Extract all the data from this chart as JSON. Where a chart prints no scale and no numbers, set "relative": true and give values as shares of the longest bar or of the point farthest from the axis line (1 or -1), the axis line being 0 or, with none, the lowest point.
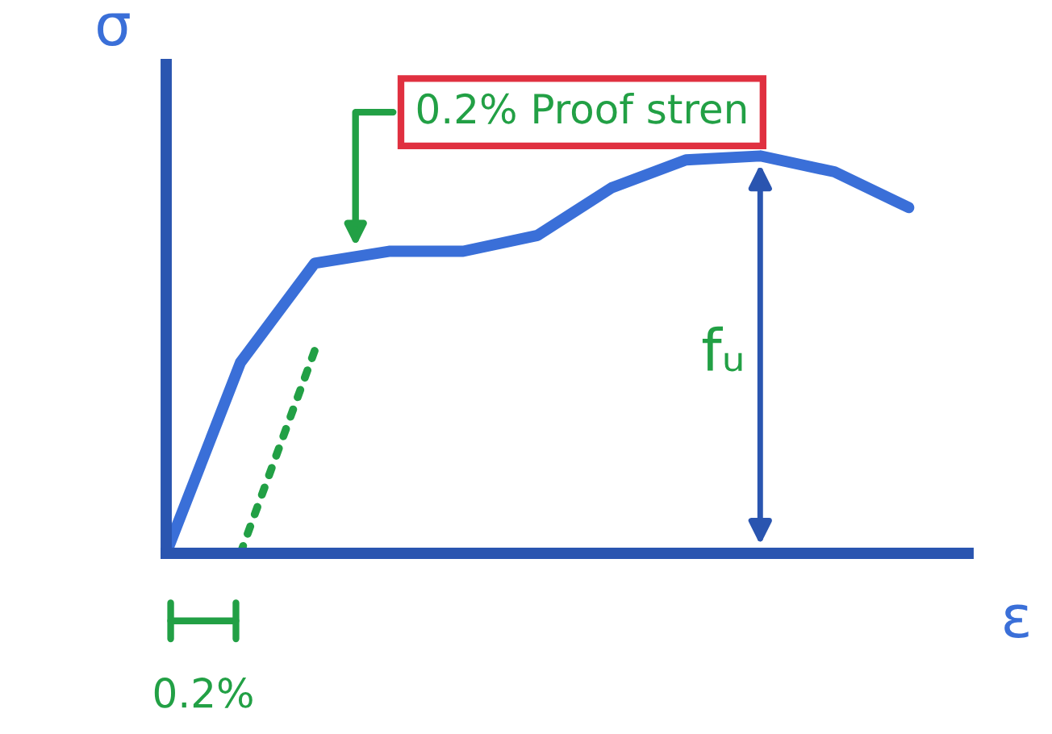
{
  "chart_data": {
    "type": "line",
    "relative": true,
    "xlabel": "ε",
    "ylabel": "σ",
    "categories": [
      null,
      null,
      null,
      null,
      null,
      null,
      null,
      null,
      null,
      null,
      null
    ],
    "series": [
      {
        "color": "#3a6fd8",
        "values": [
          0,
          0.48,
          0.73,
          0.76,
          0.76,
          0.8,
          0.92,
          0.99,
          1.0,
          0.96,
          0.87
        ]
      },
      {
        "color": "#22a045",
        "line_style": "dotted",
        "values": [
          null,
          0,
          0.51,
          null,
          null,
          null,
          null,
          null,
          null,
          null,
          null
        ]
      }
    ],
    "annotations": [
      "0.2% Proof stren",
      "fᵤ",
      "0.2%"
    ],
    "marker": "none"
  }
}
